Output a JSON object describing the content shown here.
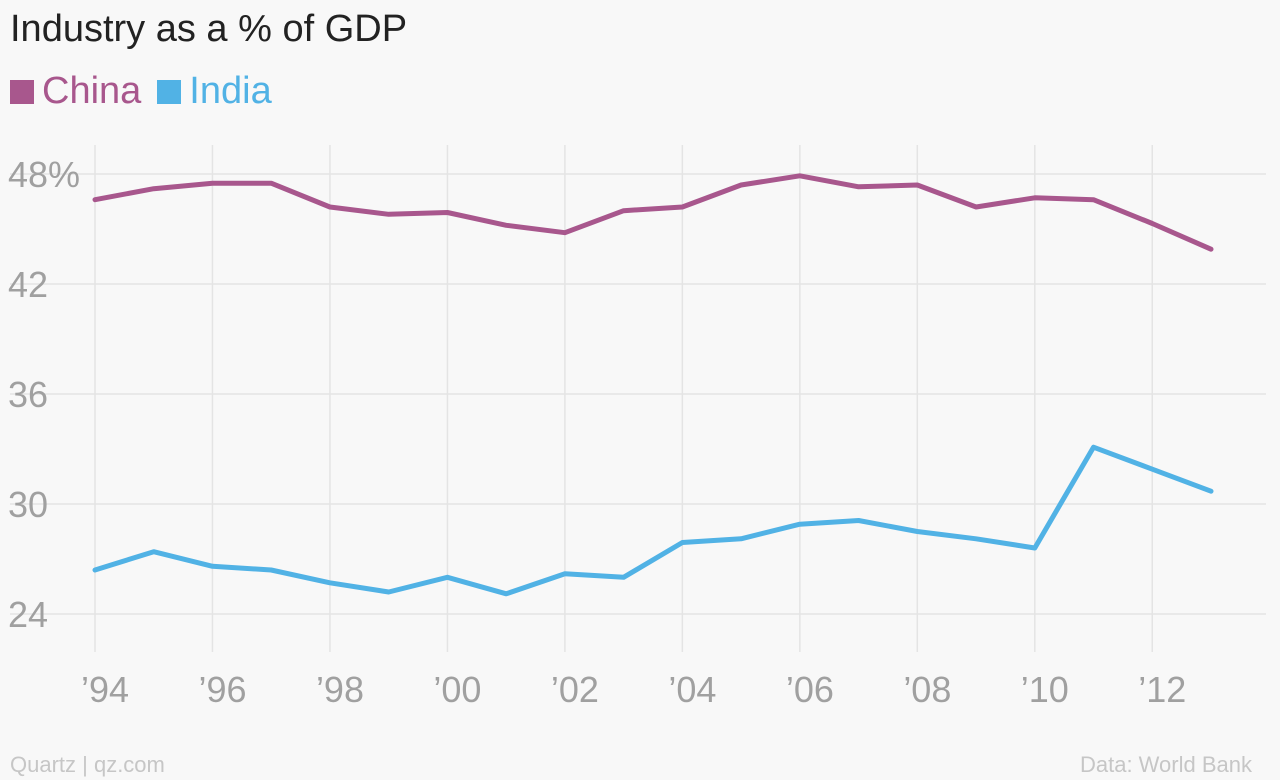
{
  "chart_data": {
    "type": "line",
    "title": "Industry as a % of GDP",
    "x": [
      1994,
      1995,
      1996,
      1997,
      1998,
      1999,
      2000,
      2001,
      2002,
      2003,
      2004,
      2005,
      2006,
      2007,
      2008,
      2009,
      2010,
      2011,
      2012,
      2013
    ],
    "x_tick_labels": [
      "’94",
      "’96",
      "’98",
      "’00",
      "’02",
      "’04",
      "’06",
      "’08",
      "’10",
      "’12"
    ],
    "x_tick_values": [
      1994,
      1996,
      1998,
      2000,
      2002,
      2004,
      2006,
      2008,
      2010,
      2012
    ],
    "y_tick_labels": [
      "48%",
      "42",
      "36",
      "30",
      "24"
    ],
    "y_tick_values": [
      48,
      42,
      36,
      30,
      24
    ],
    "ylim": [
      24,
      48
    ],
    "xlim": [
      1994,
      2013
    ],
    "grid": true,
    "legend_placement": "top-left",
    "series": [
      {
        "name": "China",
        "color": "#a8578d",
        "values": [
          46.6,
          47.2,
          47.5,
          47.5,
          46.2,
          45.8,
          45.9,
          45.2,
          44.8,
          46.0,
          46.2,
          47.4,
          47.9,
          47.3,
          47.4,
          46.2,
          46.7,
          46.6,
          45.3,
          43.9
        ]
      },
      {
        "name": "India",
        "color": "#51b2e5",
        "values": [
          26.4,
          27.4,
          26.6,
          26.4,
          25.7,
          25.2,
          26.0,
          25.1,
          26.2,
          26.0,
          27.9,
          28.1,
          28.9,
          29.1,
          28.5,
          28.1,
          27.6,
          33.1,
          31.9,
          30.7
        ]
      }
    ]
  },
  "footer": {
    "source_left": "Quartz | qz.com",
    "source_right": "Data: World Bank"
  }
}
